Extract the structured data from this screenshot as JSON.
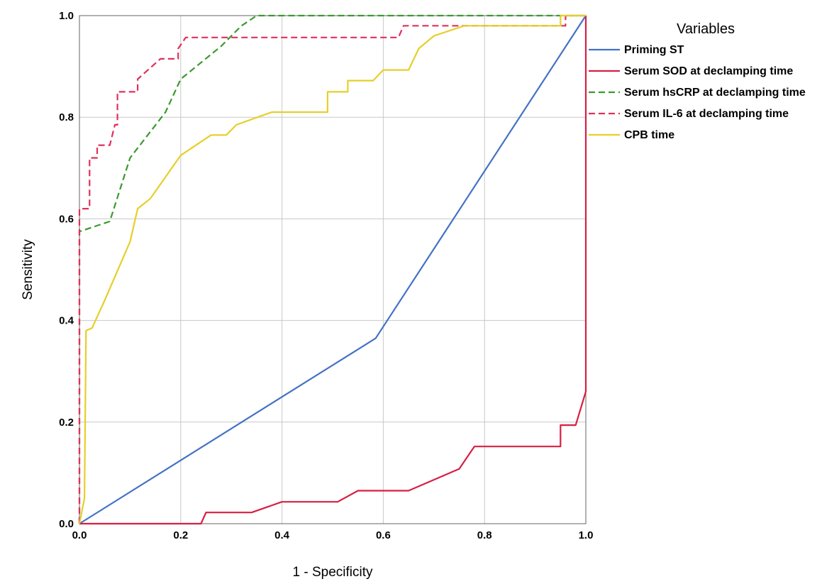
{
  "chart_data": {
    "type": "line",
    "title": "",
    "xlabel": "1 - Specificity",
    "ylabel": "Sensitivity",
    "xlim": [
      0,
      1
    ],
    "ylim": [
      0,
      1
    ],
    "x_ticks": [
      "0.0",
      "0.2",
      "0.4",
      "0.6",
      "0.8",
      "1.0"
    ],
    "y_ticks": [
      "0.0",
      "0.2",
      "0.4",
      "0.6",
      "0.8",
      "1.0"
    ],
    "grid": true,
    "legend": {
      "title": "Variables",
      "position": "right"
    },
    "series": [
      {
        "name": "Priming ST",
        "color": "#4472c4",
        "dash": "solid",
        "points": [
          [
            0,
            0
          ],
          [
            0.585,
            0.365
          ],
          [
            1.0,
            1.0
          ]
        ]
      },
      {
        "name": "Serum SOD at declamping time",
        "color": "#d71f42",
        "dash": "solid",
        "points": [
          [
            0,
            0
          ],
          [
            0.24,
            0
          ],
          [
            0.25,
            0.022
          ],
          [
            0.34,
            0.022
          ],
          [
            0.4,
            0.043
          ],
          [
            0.51,
            0.043
          ],
          [
            0.55,
            0.065
          ],
          [
            0.65,
            0.065
          ],
          [
            0.75,
            0.108
          ],
          [
            0.78,
            0.152
          ],
          [
            0.95,
            0.152
          ],
          [
            0.95,
            0.194
          ],
          [
            0.98,
            0.194
          ],
          [
            1.0,
            0.26
          ],
          [
            1.0,
            1.0
          ]
        ]
      },
      {
        "name": "Serum hsCRP at declamping time",
        "color": "#3a9a2e",
        "dash": "dashed",
        "points": [
          [
            0,
            0
          ],
          [
            0,
            0.575
          ],
          [
            0.06,
            0.595
          ],
          [
            0.1,
            0.72
          ],
          [
            0.17,
            0.81
          ],
          [
            0.2,
            0.875
          ],
          [
            0.28,
            0.94
          ],
          [
            0.32,
            0.98
          ],
          [
            0.35,
            1.0
          ],
          [
            1.0,
            1.0
          ]
        ]
      },
      {
        "name": "Serum IL-6 at declamping time",
        "color": "#e0305a",
        "dash": "dashed",
        "points": [
          [
            0,
            0
          ],
          [
            0,
            0.62
          ],
          [
            0.02,
            0.62
          ],
          [
            0.02,
            0.72
          ],
          [
            0.035,
            0.72
          ],
          [
            0.035,
            0.745
          ],
          [
            0.06,
            0.745
          ],
          [
            0.07,
            0.785
          ],
          [
            0.075,
            0.785
          ],
          [
            0.075,
            0.85
          ],
          [
            0.115,
            0.85
          ],
          [
            0.115,
            0.875
          ],
          [
            0.16,
            0.915
          ],
          [
            0.195,
            0.915
          ],
          [
            0.195,
            0.935
          ],
          [
            0.21,
            0.957
          ],
          [
            0.63,
            0.957
          ],
          [
            0.64,
            0.98
          ],
          [
            0.96,
            0.98
          ],
          [
            0.96,
            1.0
          ],
          [
            1.0,
            1.0
          ]
        ]
      },
      {
        "name": "CPB time",
        "color": "#e6cf2a",
        "dash": "solid",
        "points": [
          [
            0,
            0
          ],
          [
            0.01,
            0.05
          ],
          [
            0.013,
            0.38
          ],
          [
            0.025,
            0.385
          ],
          [
            0.05,
            0.44
          ],
          [
            0.1,
            0.555
          ],
          [
            0.115,
            0.62
          ],
          [
            0.14,
            0.64
          ],
          [
            0.2,
            0.725
          ],
          [
            0.26,
            0.765
          ],
          [
            0.29,
            0.765
          ],
          [
            0.31,
            0.785
          ],
          [
            0.38,
            0.81
          ],
          [
            0.49,
            0.81
          ],
          [
            0.49,
            0.85
          ],
          [
            0.53,
            0.85
          ],
          [
            0.53,
            0.872
          ],
          [
            0.58,
            0.872
          ],
          [
            0.6,
            0.893
          ],
          [
            0.65,
            0.893
          ],
          [
            0.67,
            0.935
          ],
          [
            0.7,
            0.96
          ],
          [
            0.76,
            0.98
          ],
          [
            0.95,
            0.98
          ],
          [
            0.95,
            1.0
          ],
          [
            1.0,
            1.0
          ]
        ]
      }
    ]
  }
}
